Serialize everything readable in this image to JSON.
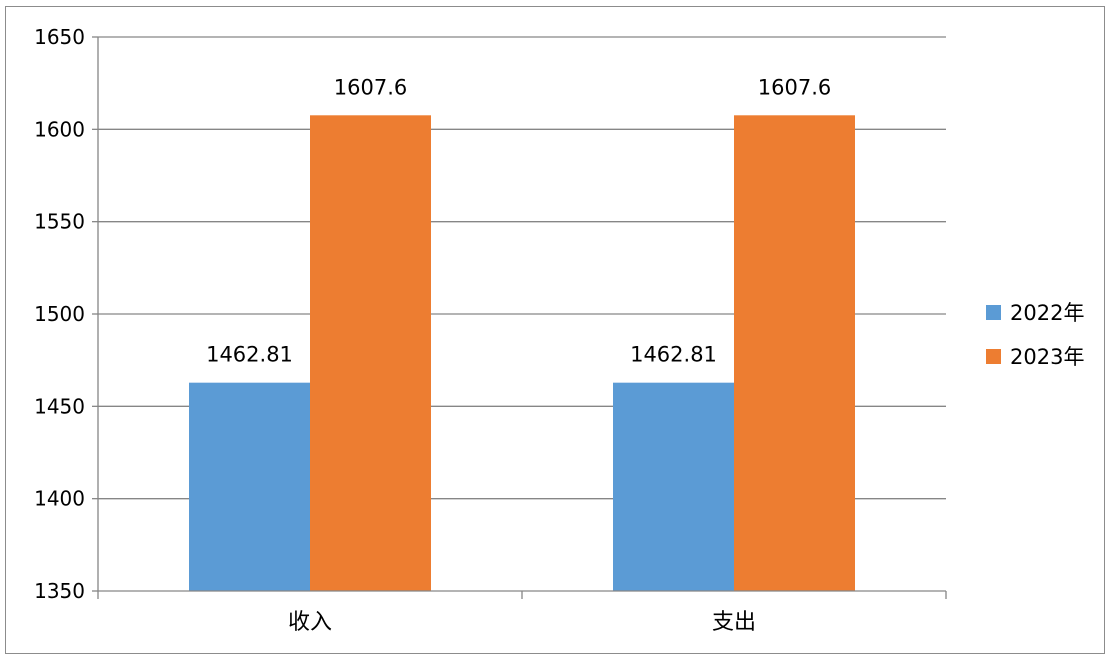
{
  "chart_data": {
    "type": "bar",
    "categories": [
      "收入",
      "支出"
    ],
    "series": [
      {
        "name": "2022年",
        "values": [
          1462.81,
          1462.81
        ],
        "color": "#5b9bd5"
      },
      {
        "name": "2023年",
        "values": [
          1607.6,
          1607.6
        ],
        "color": "#ed7d31"
      }
    ],
    "ylim": [
      1350,
      1650
    ],
    "yticks": [
      1350,
      1400,
      1450,
      1500,
      1550,
      1600,
      1650
    ],
    "grid": true,
    "legend_position": "right",
    "data_labels": true,
    "title": "",
    "xlabel": "",
    "ylabel": ""
  }
}
